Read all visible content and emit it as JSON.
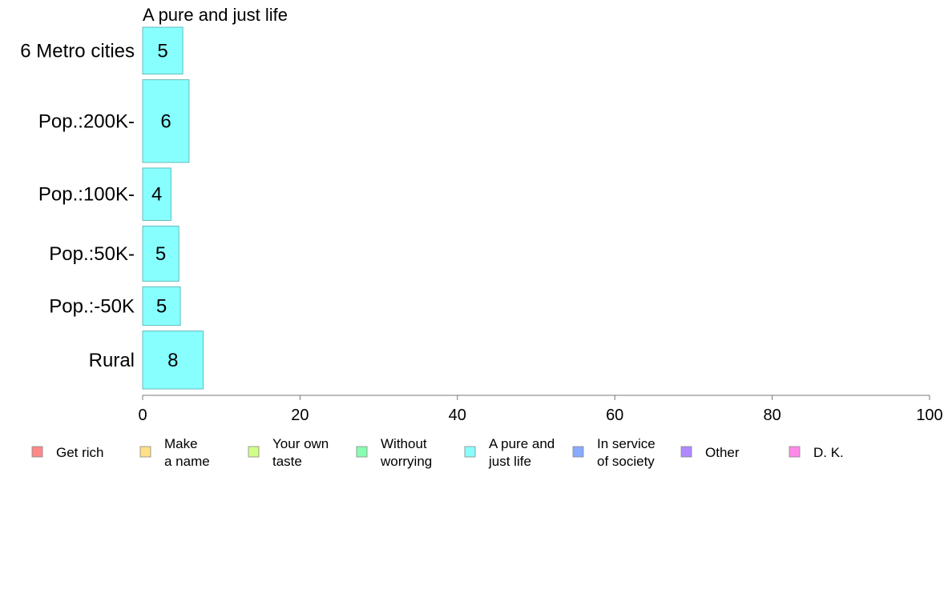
{
  "chart_data": {
    "type": "bar",
    "orientation": "horizontal",
    "title": "A pure and just life",
    "categories": [
      "6 Metro cities",
      "Pop.:200K-",
      "Pop.:100K-",
      "Pop.:50K-",
      "Pop.:-50K",
      "Rural"
    ],
    "band_weights": [
      0.85,
      1.5,
      0.95,
      1.0,
      0.7,
      1.05
    ],
    "values": [
      5.1,
      5.9,
      3.6,
      4.6,
      4.8,
      7.7
    ],
    "value_labels": [
      "5",
      "6",
      "4",
      "5",
      "5",
      "8"
    ],
    "xlim": [
      0,
      100
    ],
    "xticks": [
      0,
      20,
      40,
      60,
      80,
      100
    ],
    "xtick_labels": [
      "0",
      "20",
      "40",
      "60",
      "80",
      "100"
    ],
    "grid": false,
    "bar_color": "#88FFFF",
    "bar_stroke": "#66BBBB",
    "legend_position": "bottom",
    "legend": [
      {
        "lines": [
          "Get rich"
        ],
        "color": "#FF8888"
      },
      {
        "lines": [
          "Make",
          "a name"
        ],
        "color": "#FFE088"
      },
      {
        "lines": [
          "Your own",
          "taste"
        ],
        "color": "#D0FF88"
      },
      {
        "lines": [
          "Without",
          "worrying"
        ],
        "color": "#88FFB0"
      },
      {
        "lines": [
          "A pure and",
          "just life"
        ],
        "color": "#88FFFF"
      },
      {
        "lines": [
          "In service",
          "of society"
        ],
        "color": "#88AAFF"
      },
      {
        "lines": [
          "Other"
        ],
        "color": "#B088FF"
      },
      {
        "lines": [
          "D. K."
        ],
        "color": "#FF88E8"
      }
    ]
  }
}
